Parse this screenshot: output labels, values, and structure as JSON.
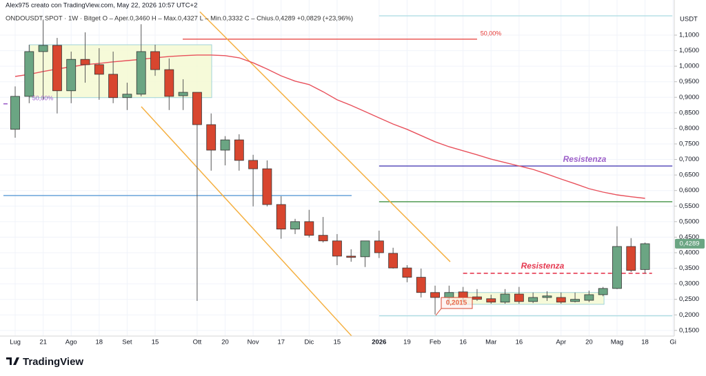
{
  "chart_data": {
    "type": "candlestick",
    "author_line": "Alex975 creato con TradingView.com, May 22, 2026 10:57 UTC+2",
    "legend_line": "ONDOUSDT SPOT · 1W · Bitget   O – Aper.0,3460   H – Max.0,4327   L – Min.0,3332   C – Chius.0,4289  +0,0829 (+23,96%)",
    "y_unit": "USDT",
    "brand": "TradingView",
    "categories": [
      "Lug",
      null,
      "21",
      null,
      "Ago",
      null,
      "18",
      null,
      "Set",
      null,
      "15",
      null,
      null,
      "Ott",
      null,
      "20",
      null,
      "Nov",
      null,
      "17",
      null,
      "Dic",
      null,
      "15",
      null,
      null,
      "2026",
      null,
      "19",
      null,
      "Feb",
      null,
      "16",
      null,
      "Mar",
      null,
      "16",
      null,
      null,
      "Apr",
      null,
      "20",
      null,
      "Mag",
      null,
      "18",
      null,
      "Gi"
    ],
    "open": [
      0.797,
      0.903,
      1.047,
      1.067,
      0.921,
      1.022,
      1.005,
      0.974,
      0.899,
      0.91,
      1.047,
      0.989,
      0.905,
      0.916,
      0.812,
      0.73,
      0.763,
      0.697,
      0.67,
      0.555,
      0.476,
      0.5,
      0.456,
      0.438,
      0.389,
      0.387,
      0.438,
      0.398,
      0.351,
      0.321,
      0.272,
      0.256,
      0.274,
      0.258,
      0.252,
      0.241,
      0.267,
      0.243,
      0.256,
      0.256,
      0.243,
      0.247,
      0.265,
      0.285,
      0.42,
      0.346,
      null,
      null
    ],
    "high": [
      0.935,
      1.069,
      1.15,
      1.091,
      1.047,
      1.109,
      1.058,
      1.047,
      0.947,
      1.135,
      1.069,
      1.025,
      0.958,
      0.914,
      0.848,
      0.775,
      0.781,
      0.715,
      0.697,
      0.582,
      0.509,
      0.538,
      0.515,
      0.46,
      0.411,
      0.438,
      0.471,
      0.416,
      0.36,
      0.349,
      0.294,
      0.294,
      0.29,
      0.283,
      0.265,
      0.283,
      0.29,
      0.272,
      0.276,
      0.272,
      0.272,
      0.278,
      0.29,
      0.485,
      0.447,
      0.4327,
      null,
      null
    ],
    "low": [
      0.77,
      0.881,
      0.892,
      0.848,
      0.881,
      0.947,
      0.892,
      0.881,
      0.859,
      0.903,
      0.969,
      0.859,
      0.859,
      0.245,
      0.664,
      0.681,
      0.664,
      0.549,
      0.549,
      0.445,
      0.46,
      0.449,
      0.433,
      0.36,
      0.371,
      0.354,
      0.383,
      0.349,
      0.305,
      0.256,
      0.2015,
      0.239,
      0.242,
      0.245,
      0.236,
      0.236,
      0.236,
      0.238,
      0.245,
      0.236,
      0.24,
      0.241,
      0.26,
      0.283,
      0.338,
      0.3332,
      null,
      null
    ],
    "close": [
      0.903,
      1.047,
      1.067,
      0.921,
      1.022,
      1.005,
      0.974,
      0.899,
      0.91,
      1.047,
      0.989,
      0.903,
      0.916,
      0.812,
      0.73,
      0.763,
      0.697,
      0.67,
      0.555,
      0.476,
      0.5,
      0.456,
      0.438,
      0.389,
      0.385,
      0.438,
      0.4,
      0.351,
      0.321,
      0.272,
      0.256,
      0.272,
      0.256,
      0.25,
      0.241,
      0.267,
      0.243,
      0.256,
      0.261,
      0.241,
      0.25,
      0.265,
      0.285,
      0.42,
      0.343,
      0.4289,
      null,
      null
    ],
    "up_color": "#6ba583",
    "down_color": "#d8462f",
    "moving_average": {
      "color": "#e8505b",
      "values": [
        0.967,
        0.974,
        0.983,
        0.991,
        0.998,
        1.005,
        1.009,
        1.014,
        1.018,
        1.022,
        1.027,
        1.031,
        1.034,
        1.036,
        1.036,
        1.034,
        1.027,
        1.011,
        0.991,
        0.969,
        0.952,
        0.941,
        0.918,
        0.892,
        0.874,
        0.854,
        0.834,
        0.814,
        0.797,
        0.777,
        0.757,
        0.741,
        0.728,
        0.715,
        0.701,
        0.69,
        0.679,
        0.668,
        0.653,
        0.637,
        0.622,
        0.606,
        0.595,
        0.586,
        0.58,
        0.575,
        null,
        null
      ]
    },
    "xlim": [
      -1.084,
      47.09
    ],
    "ylim": [
      0.1319,
      1.1731
    ],
    "yticks": [
      {
        "value": 1.1,
        "label": "1,1000"
      },
      {
        "value": 1.05,
        "label": "1,0500"
      },
      {
        "value": 1.0,
        "label": "1,0000"
      },
      {
        "value": 0.95,
        "label": "0,9500"
      },
      {
        "value": 0.9,
        "label": "0,9000"
      },
      {
        "value": 0.85,
        "label": "0,8500"
      },
      {
        "value": 0.8,
        "label": "0,8000"
      },
      {
        "value": 0.75,
        "label": "0,7500"
      },
      {
        "value": 0.7,
        "label": "0,7000"
      },
      {
        "value": 0.65,
        "label": "0,6500"
      },
      {
        "value": 0.6,
        "label": "0,6000"
      },
      {
        "value": 0.55,
        "label": "0,5500"
      },
      {
        "value": 0.5,
        "label": "0,5000"
      },
      {
        "value": 0.45,
        "label": "0,4500"
      },
      {
        "value": 0.4,
        "label": "0,4000"
      },
      {
        "value": 0.35,
        "label": "0,3500"
      },
      {
        "value": 0.3,
        "label": "0,3000"
      },
      {
        "value": 0.25,
        "label": "0,2500"
      },
      {
        "value": 0.2,
        "label": "0,2000"
      },
      {
        "value": 0.15,
        "label": "0,1500"
      }
    ],
    "grid": true,
    "last_price": {
      "value": 0.4289,
      "label": "0,4289",
      "color": "#6ba583"
    },
    "hlines": [
      {
        "price": 1.087,
        "from": 11.97,
        "to": 33.0,
        "color": "#e53935",
        "dashed": false
      },
      {
        "price": 0.584,
        "from": -0.84,
        "to": 24.04,
        "color": "#5b9bd5",
        "dashed": false
      },
      {
        "price": 0.679,
        "from": 26.0,
        "to": 46.95,
        "color": "#4a3fb5",
        "dashed": false
      },
      {
        "price": 0.564,
        "from": 26.0,
        "to": 46.95,
        "color": "#3f9142",
        "dashed": false
      },
      {
        "price": 0.334,
        "from": 32.0,
        "to": 45.5,
        "color": "#e53950",
        "dashed": true
      },
      {
        "price": 1.162,
        "from": 26.0,
        "to": 46.95,
        "color": "#a8dbe0",
        "dashed": false
      },
      {
        "price": 0.197,
        "from": 26.0,
        "to": 46.95,
        "color": "#a8dbe0",
        "dashed": false
      },
      {
        "price": 0.879,
        "from": -0.84,
        "to": -0.39,
        "color": "#9c5fc9",
        "dashed": true
      }
    ],
    "boxes": [
      {
        "from": 1.03,
        "to": 14.04,
        "top": 1.069,
        "bottom": 0.899
      },
      {
        "from": 30.9,
        "to": 42.07,
        "top": 0.272,
        "bottom": 0.234
      }
    ],
    "trendlines": [
      {
        "x1": 13.2,
        "p1": 1.175,
        "x2": 31.08,
        "p2": 0.371
      },
      {
        "x1": 9.01,
        "p1": 0.87,
        "x2": 24.04,
        "p2": 0.132
      }
    ],
    "annotations": {
      "fib_top": "50,00%",
      "fib_left": "50,00%",
      "resist_upper": "Resistenza",
      "resist_lower": "Resistenza",
      "low_label": "0,2015"
    }
  }
}
